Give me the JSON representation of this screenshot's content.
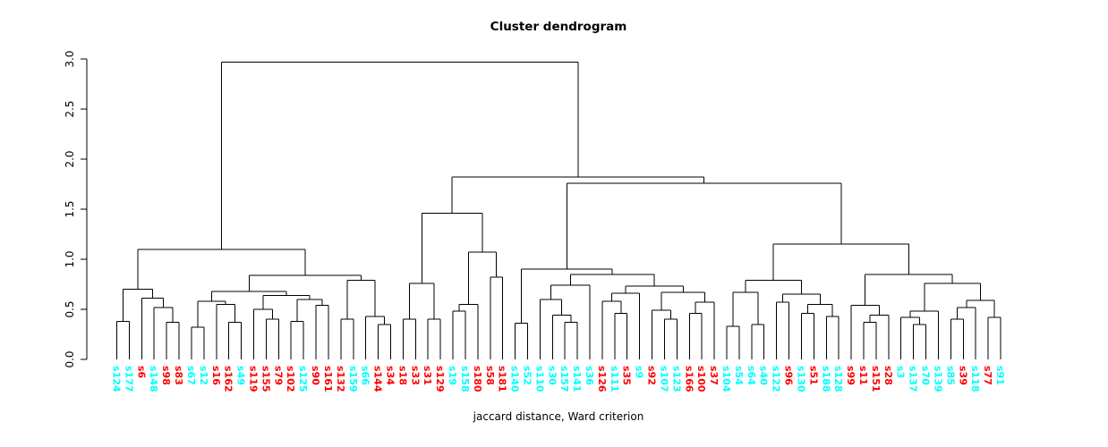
{
  "figure": {
    "title": "Cluster dendrogram",
    "xlabel": "jaccard distance, Ward criterion"
  },
  "chart_data": {
    "type": "dendrogram",
    "title": "Cluster dendrogram",
    "xlabel": "jaccard distance, Ward criterion",
    "ylabel": "",
    "ylim": [
      0,
      3.05
    ],
    "yticks": [
      "0.0",
      "0.5",
      "1.0",
      "1.5",
      "2.0",
      "2.5",
      "3.0"
    ],
    "grid": false,
    "legend": false,
    "colors": {
      "line": "#000000",
      "cluster_cyan": "#00FFFF",
      "cluster_red": "#FF0000"
    },
    "leaves": [
      {
        "label": "s124",
        "color": "#00FFFF"
      },
      {
        "label": "s177",
        "color": "#00FFFF"
      },
      {
        "label": "s6",
        "color": "#FF0000"
      },
      {
        "label": "s148",
        "color": "#00FFFF"
      },
      {
        "label": "s98",
        "color": "#FF0000"
      },
      {
        "label": "s83",
        "color": "#FF0000"
      },
      {
        "label": "s67",
        "color": "#00FFFF"
      },
      {
        "label": "s12",
        "color": "#00FFFF"
      },
      {
        "label": "s16",
        "color": "#FF0000"
      },
      {
        "label": "s162",
        "color": "#FF0000"
      },
      {
        "label": "s49",
        "color": "#00FFFF"
      },
      {
        "label": "s119",
        "color": "#FF0000"
      },
      {
        "label": "s155",
        "color": "#FF0000"
      },
      {
        "label": "s79",
        "color": "#FF0000"
      },
      {
        "label": "s102",
        "color": "#FF0000"
      },
      {
        "label": "s125",
        "color": "#00FFFF"
      },
      {
        "label": "s90",
        "color": "#FF0000"
      },
      {
        "label": "s161",
        "color": "#FF0000"
      },
      {
        "label": "s132",
        "color": "#FF0000"
      },
      {
        "label": "s159",
        "color": "#00FFFF"
      },
      {
        "label": "s66",
        "color": "#00FFFF"
      },
      {
        "label": "s144",
        "color": "#FF0000"
      },
      {
        "label": "s34",
        "color": "#FF0000"
      },
      {
        "label": "s18",
        "color": "#FF0000"
      },
      {
        "label": "s33",
        "color": "#FF0000"
      },
      {
        "label": "s31",
        "color": "#FF0000"
      },
      {
        "label": "s129",
        "color": "#FF0000"
      },
      {
        "label": "s19",
        "color": "#00FFFF"
      },
      {
        "label": "s158",
        "color": "#00FFFF"
      },
      {
        "label": "s180",
        "color": "#FF0000"
      },
      {
        "label": "s58",
        "color": "#FF0000"
      },
      {
        "label": "s181",
        "color": "#FF0000"
      },
      {
        "label": "s140",
        "color": "#00FFFF"
      },
      {
        "label": "s52",
        "color": "#00FFFF"
      },
      {
        "label": "s110",
        "color": "#00FFFF"
      },
      {
        "label": "s30",
        "color": "#00FFFF"
      },
      {
        "label": "s157",
        "color": "#00FFFF"
      },
      {
        "label": "s141",
        "color": "#00FFFF"
      },
      {
        "label": "s36",
        "color": "#00FFFF"
      },
      {
        "label": "s126",
        "color": "#FF0000"
      },
      {
        "label": "s111",
        "color": "#00FFFF"
      },
      {
        "label": "s35",
        "color": "#FF0000"
      },
      {
        "label": "s9",
        "color": "#00FFFF"
      },
      {
        "label": "s92",
        "color": "#FF0000"
      },
      {
        "label": "s107",
        "color": "#00FFFF"
      },
      {
        "label": "s123",
        "color": "#00FFFF"
      },
      {
        "label": "s166",
        "color": "#FF0000"
      },
      {
        "label": "s100",
        "color": "#FF0000"
      },
      {
        "label": "s37",
        "color": "#FF0000"
      },
      {
        "label": "s104",
        "color": "#00FFFF"
      },
      {
        "label": "s54",
        "color": "#00FFFF"
      },
      {
        "label": "s64",
        "color": "#00FFFF"
      },
      {
        "label": "s40",
        "color": "#00FFFF"
      },
      {
        "label": "s122",
        "color": "#00FFFF"
      },
      {
        "label": "s96",
        "color": "#FF0000"
      },
      {
        "label": "s130",
        "color": "#00FFFF"
      },
      {
        "label": "s51",
        "color": "#FF0000"
      },
      {
        "label": "s188",
        "color": "#00FFFF"
      },
      {
        "label": "s128",
        "color": "#00FFFF"
      },
      {
        "label": "s99",
        "color": "#FF0000"
      },
      {
        "label": "s11",
        "color": "#FF0000"
      },
      {
        "label": "s151",
        "color": "#FF0000"
      },
      {
        "label": "s28",
        "color": "#FF0000"
      },
      {
        "label": "s3",
        "color": "#00FFFF"
      },
      {
        "label": "s137",
        "color": "#00FFFF"
      },
      {
        "label": "s70",
        "color": "#00FFFF"
      },
      {
        "label": "s139",
        "color": "#00FFFF"
      },
      {
        "label": "s85",
        "color": "#00FFFF"
      },
      {
        "label": "s39",
        "color": "#FF0000"
      },
      {
        "label": "s118",
        "color": "#00FFFF"
      },
      {
        "label": "s77",
        "color": "#FF0000"
      },
      {
        "label": "s91",
        "color": "#00FFFF"
      }
    ],
    "tree": [
      2.97,
      [
        1.1,
        [
          0.7,
          [
            0.38,
            "s124",
            "s177"
          ],
          [
            0.61,
            "s6",
            [
              0.52,
              "s148",
              [
                0.37,
                "s98",
                "s83"
              ]
            ]
          ]
        ],
        [
          0.84,
          [
            0.68,
            [
              0.58,
              [
                0.32,
                "s67",
                "s12"
              ],
              [
                0.55,
                "s16",
                [
                  0.37,
                  "s162",
                  "s49"
                ]
              ]
            ],
            [
              0.64,
              [
                0.5,
                "s119",
                [
                  0.4,
                  "s155",
                  "s79"
                ]
              ],
              [
                0.6,
                [
                  0.38,
                  "s102",
                  "s125"
                ],
                [
                  0.54,
                  "s90",
                  "s161"
                ]
              ]
            ]
          ],
          [
            0.79,
            [
              0.4,
              "s132",
              "s159"
            ],
            [
              0.43,
              "s66",
              [
                0.35,
                "s144",
                "s34"
              ]
            ]
          ]
        ]
      ],
      [
        1.82,
        [
          1.46,
          [
            0.76,
            [
              0.4,
              "s18",
              "s33"
            ],
            [
              0.4,
              "s31",
              "s129"
            ]
          ],
          [
            1.07,
            [
              0.55,
              [
                0.48,
                "s19",
                "s158"
              ],
              "s180"
            ],
            [
              0.82,
              "s58",
              "s181"
            ]
          ]
        ],
        [
          1.76,
          [
            0.9,
            [
              0.36,
              "s140",
              "s52"
            ],
            [
              0.85,
              [
                0.74,
                [
                  0.6,
                  "s110",
                  [
                    0.44,
                    "s30",
                    [
                      0.37,
                      "s157",
                      "s141"
                    ]
                  ]
                ],
                "s36"
              ],
              [
                0.73,
                [
                  0.66,
                  [
                    0.58,
                    "s126",
                    [
                      0.46,
                      "s111",
                      "s35"
                    ]
                  ],
                  "s9"
                ],
                [
                  0.67,
                  [
                    0.49,
                    "s92",
                    [
                      0.4,
                      "s107",
                      "s123"
                    ]
                  ],
                  [
                    0.57,
                    [
                      0.46,
                      "s166",
                      "s100"
                    ],
                    "s37"
                  ]
                ]
              ]
            ]
          ],
          [
            1.15,
            [
              0.79,
              [
                0.67,
                [
                  0.33,
                  "s104",
                  "s54"
                ],
                [
                  0.35,
                  "s64",
                  "s40"
                ]
              ],
              [
                0.65,
                [
                  0.57,
                  "s122",
                  "s96"
                ],
                [
                  0.55,
                  [
                    0.46,
                    "s130",
                    "s51"
                  ],
                  [
                    0.43,
                    "s188",
                    "s128"
                  ]
                ]
              ]
            ],
            [
              0.85,
              [
                0.54,
                "s99",
                [
                  0.44,
                  [
                    0.37,
                    "s11",
                    "s151"
                  ],
                  "s28"
                ]
              ],
              [
                0.76,
                [
                  0.48,
                  [
                    0.42,
                    "s3",
                    [
                      0.35,
                      "s137",
                      "s70"
                    ]
                  ],
                  "s139"
                ],
                [
                  0.59,
                  [
                    0.52,
                    [
                      0.4,
                      "s85",
                      "s39"
                    ],
                    "s118"
                  ],
                  [
                    0.42,
                    "s77",
                    "s91"
                  ]
                ]
              ]
            ]
          ]
        ]
      ]
    ]
  }
}
